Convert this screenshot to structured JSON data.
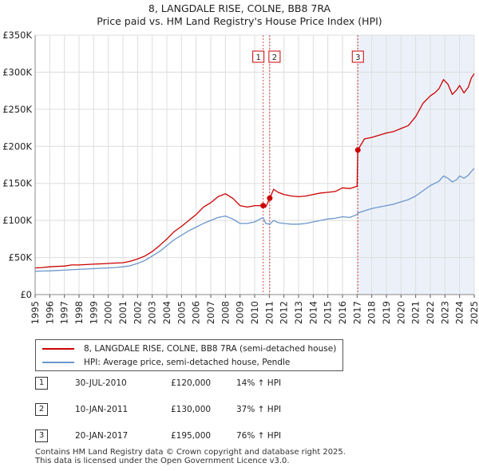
{
  "title_line1": "8, LANGDALE RISE, COLNE, BB8 7RA",
  "title_line2": "Price paid vs. HM Land Registry's House Price Index (HPI)",
  "colors": {
    "price": "#cc0000",
    "hpi": "#6a96cc",
    "marker_line": "#cc0000",
    "shade": "#dde6f4"
  },
  "chart_data": {
    "type": "line",
    "title": "8, LANGDALE RISE, COLNE, BB8 7RA — Price paid vs. HM Land Registry's House Price Index (HPI)",
    "xlabel": "",
    "ylabel": "",
    "xlim": [
      1995.0,
      2025.0
    ],
    "ylim": [
      0,
      350000
    ],
    "y_ticks": [
      0,
      50000,
      100000,
      150000,
      200000,
      250000,
      300000,
      350000
    ],
    "y_tick_labels": [
      "£0",
      "£50K",
      "£100K",
      "£150K",
      "£200K",
      "£250K",
      "£300K",
      "£350K"
    ],
    "x_tick_labels": [
      "1995",
      "1996",
      "1997",
      "1998",
      "1999",
      "2000",
      "2001",
      "2002",
      "2003",
      "2004",
      "2005",
      "2006",
      "2007",
      "2008",
      "2009",
      "2010",
      "2011",
      "2012",
      "2013",
      "2014",
      "2015",
      "2016",
      "2017",
      "2018",
      "2019",
      "2020",
      "2021",
      "2022",
      "2023",
      "2024",
      "2025"
    ],
    "grid": true,
    "series": [
      {
        "name": "8, LANGDALE RISE, COLNE, BB8 7RA (semi-detached house)",
        "color": "#cc0000",
        "x": [
          1995.0,
          1995.5,
          1996.0,
          1996.5,
          1997.0,
          1997.5,
          1998.0,
          1998.5,
          1999.0,
          1999.5,
          2000.0,
          2000.5,
          2001.0,
          2001.5,
          2002.0,
          2002.5,
          2003.0,
          2003.5,
          2004.0,
          2004.5,
          2005.0,
          2005.5,
          2006.0,
          2006.5,
          2007.0,
          2007.5,
          2008.0,
          2008.5,
          2009.0,
          2009.5,
          2010.0,
          2010.58,
          2010.75,
          2011.03,
          2011.3,
          2011.6,
          2012.0,
          2012.5,
          2013.0,
          2013.5,
          2014.0,
          2014.5,
          2015.0,
          2015.5,
          2016.0,
          2016.5,
          2017.0,
          2017.05,
          2017.5,
          2018.0,
          2018.5,
          2019.0,
          2019.5,
          2020.0,
          2020.5,
          2021.0,
          2021.5,
          2022.0,
          2022.3,
          2022.6,
          2022.9,
          2023.2,
          2023.5,
          2023.8,
          2024.0,
          2024.3,
          2024.6,
          2024.8,
          2025.0
        ],
        "values": [
          36000,
          36500,
          37500,
          38000,
          38500,
          40000,
          40000,
          40500,
          41000,
          41500,
          42000,
          42500,
          43000,
          45000,
          48000,
          52000,
          58000,
          66000,
          75000,
          85000,
          92000,
          100000,
          108000,
          118000,
          124000,
          132000,
          136000,
          130000,
          120000,
          118000,
          120000,
          120000,
          118000,
          130000,
          142000,
          138000,
          135000,
          133000,
          132000,
          133000,
          135000,
          137000,
          138000,
          139000,
          144000,
          143000,
          146000,
          195000,
          210000,
          212000,
          215000,
          218000,
          220000,
          224000,
          228000,
          240000,
          258000,
          268000,
          272000,
          278000,
          290000,
          284000,
          270000,
          276000,
          282000,
          272000,
          280000,
          292000,
          298000
        ]
      },
      {
        "name": "HPI: Average price, semi-detached house, Pendle",
        "color": "#6a96cc",
        "x": [
          1995.0,
          1995.5,
          1996.0,
          1996.5,
          1997.0,
          1997.5,
          1998.0,
          1998.5,
          1999.0,
          1999.5,
          2000.0,
          2000.5,
          2001.0,
          2001.5,
          2002.0,
          2002.5,
          2003.0,
          2003.5,
          2004.0,
          2004.5,
          2005.0,
          2005.5,
          2006.0,
          2006.5,
          2007.0,
          2007.5,
          2008.0,
          2008.5,
          2009.0,
          2009.5,
          2010.0,
          2010.58,
          2010.75,
          2011.03,
          2011.3,
          2011.6,
          2012.0,
          2012.5,
          2013.0,
          2013.5,
          2014.0,
          2014.5,
          2015.0,
          2015.5,
          2016.0,
          2016.5,
          2017.0,
          2017.05,
          2017.5,
          2018.0,
          2018.5,
          2019.0,
          2019.5,
          2020.0,
          2020.5,
          2021.0,
          2021.5,
          2022.0,
          2022.3,
          2022.6,
          2022.9,
          2023.2,
          2023.5,
          2023.8,
          2024.0,
          2024.3,
          2024.6,
          2024.8,
          2025.0
        ],
        "values": [
          31500,
          31800,
          32000,
          32500,
          33000,
          33500,
          34000,
          34500,
          35000,
          35500,
          36000,
          36500,
          37500,
          39000,
          42000,
          46000,
          52000,
          58000,
          66000,
          74000,
          80000,
          86000,
          91000,
          96000,
          100000,
          104000,
          106000,
          102000,
          96000,
          96000,
          98000,
          104000,
          96000,
          95000,
          100000,
          97000,
          96000,
          95000,
          95000,
          96000,
          98000,
          100000,
          102000,
          103000,
          105000,
          104000,
          108000,
          110000,
          113000,
          116000,
          118000,
          120000,
          122000,
          125000,
          128000,
          133000,
          140000,
          147000,
          150000,
          153000,
          160000,
          157000,
          152000,
          155000,
          160000,
          157000,
          161000,
          166000,
          170000
        ]
      }
    ],
    "sale_markers": [
      {
        "label": "1",
        "x": 2010.58,
        "price": 120000
      },
      {
        "label": "2",
        "x": 2011.03,
        "price": 130000
      },
      {
        "label": "3",
        "x": 2017.05,
        "price": 195000
      }
    ]
  },
  "legend": {
    "price_label": "8, LANGDALE RISE, COLNE, BB8 7RA (semi-detached house)",
    "hpi_label": "HPI: Average price, semi-detached house, Pendle"
  },
  "sales": [
    {
      "num": "1",
      "date": "30-JUL-2010",
      "price": "£120,000",
      "hpi": "14% ↑ HPI"
    },
    {
      "num": "2",
      "date": "10-JAN-2011",
      "price": "£130,000",
      "hpi": "37% ↑ HPI"
    },
    {
      "num": "3",
      "date": "20-JAN-2017",
      "price": "£195,000",
      "hpi": "76% ↑ HPI"
    }
  ],
  "footer": {
    "line1": "Contains HM Land Registry data © Crown copyright and database right 2025.",
    "line2": "This data is licensed under the Open Government Licence v3.0."
  }
}
